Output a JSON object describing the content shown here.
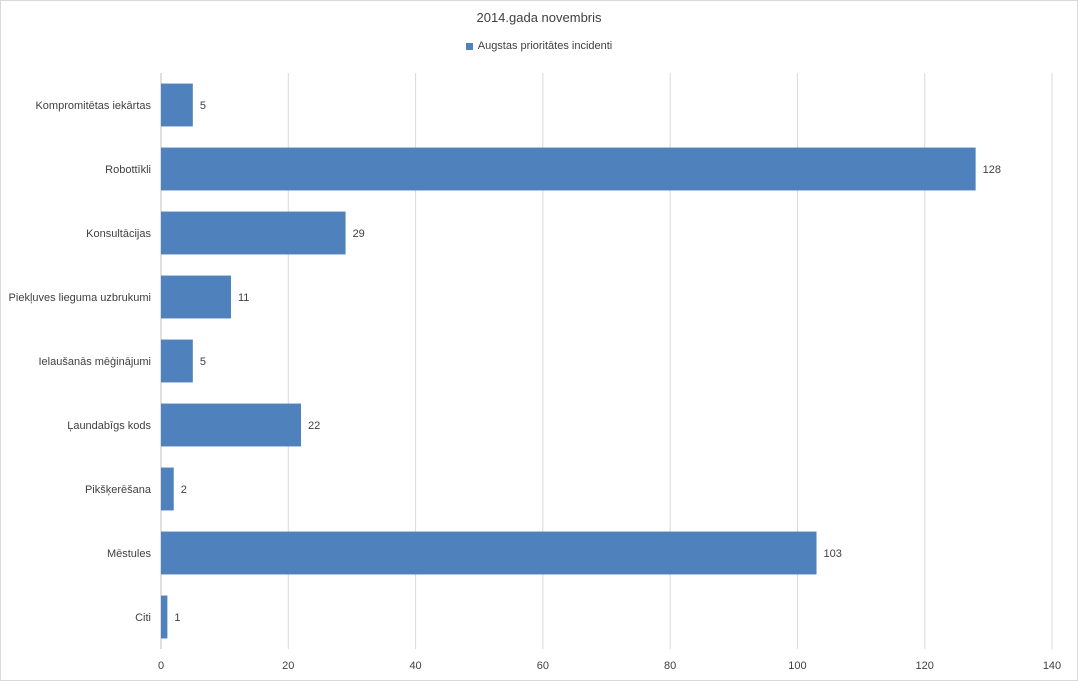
{
  "chart_data": {
    "type": "bar",
    "orientation": "horizontal",
    "title": "2014.gada novembris",
    "categories": [
      "Kompromitētas iekārtas",
      "Robottīkli",
      "Konsultācijas",
      "Piekļuves lieguma uzbrukumi",
      "Ielaušanās mēģinājumi",
      "Ļaundabīgs kods",
      "Pikšķerēšana",
      "Mēstules",
      "Citi"
    ],
    "series": [
      {
        "name": "Augstas prioritātes incidenti",
        "values": [
          5,
          128,
          29,
          11,
          5,
          22,
          2,
          103,
          1
        ],
        "color": "#4f81bd"
      }
    ],
    "xlim": [
      0,
      140
    ],
    "xticks": [
      0,
      20,
      40,
      60,
      80,
      100,
      120,
      140
    ],
    "grid": "vertical",
    "legend_position": "top",
    "data_labels": true
  }
}
